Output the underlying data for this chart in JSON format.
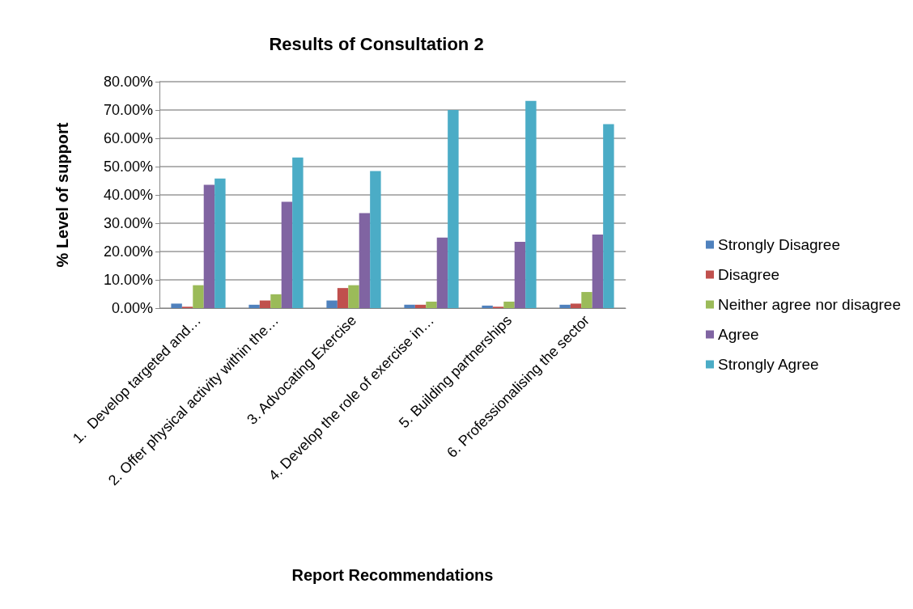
{
  "chart_data": {
    "type": "bar",
    "title": "Results of Consultation 2",
    "xlabel": "Report Recommendations",
    "ylabel": "% Level of support",
    "categories": [
      "1.  Develop targeted and…",
      "2. Offer physical activity within the…",
      "3. Advocating Exercise",
      "4. Develop the role of exercise in…",
      "5. Building partnerships",
      "6. Professionalising the sector"
    ],
    "series": [
      {
        "name": "Strongly Disagree",
        "color": "#4f81bd",
        "values": [
          1.6,
          1.2,
          2.7,
          1.2,
          0.9,
          1.2
        ]
      },
      {
        "name": "Disagree",
        "color": "#c0504d",
        "values": [
          0.5,
          2.7,
          7.1,
          1.2,
          0.5,
          1.6
        ]
      },
      {
        "name": "Neither agree nor disagree",
        "color": "#9bbb59",
        "values": [
          8.1,
          4.9,
          8.1,
          2.3,
          2.3,
          5.7
        ]
      },
      {
        "name": "Agree",
        "color": "#8064a2",
        "values": [
          43.6,
          37.6,
          33.6,
          24.9,
          23.4,
          26.0
        ]
      },
      {
        "name": "Strongly Agree",
        "color": "#4bacc6",
        "values": [
          45.8,
          53.2,
          48.4,
          70.0,
          73.2,
          65.0
        ]
      }
    ],
    "ylim": [
      0,
      80
    ],
    "yticks": [
      {
        "value": 0,
        "label": "0.00%"
      },
      {
        "value": 10,
        "label": "10.00%"
      },
      {
        "value": 20,
        "label": "20.00%"
      },
      {
        "value": 30,
        "label": "30.00%"
      },
      {
        "value": 40,
        "label": "40.00%"
      },
      {
        "value": 50,
        "label": "50.00%"
      },
      {
        "value": 60,
        "label": "60.00%"
      },
      {
        "value": 70,
        "label": "70.00%"
      },
      {
        "value": 80,
        "label": "80.00%"
      }
    ],
    "grid": "y",
    "legend": "right"
  }
}
